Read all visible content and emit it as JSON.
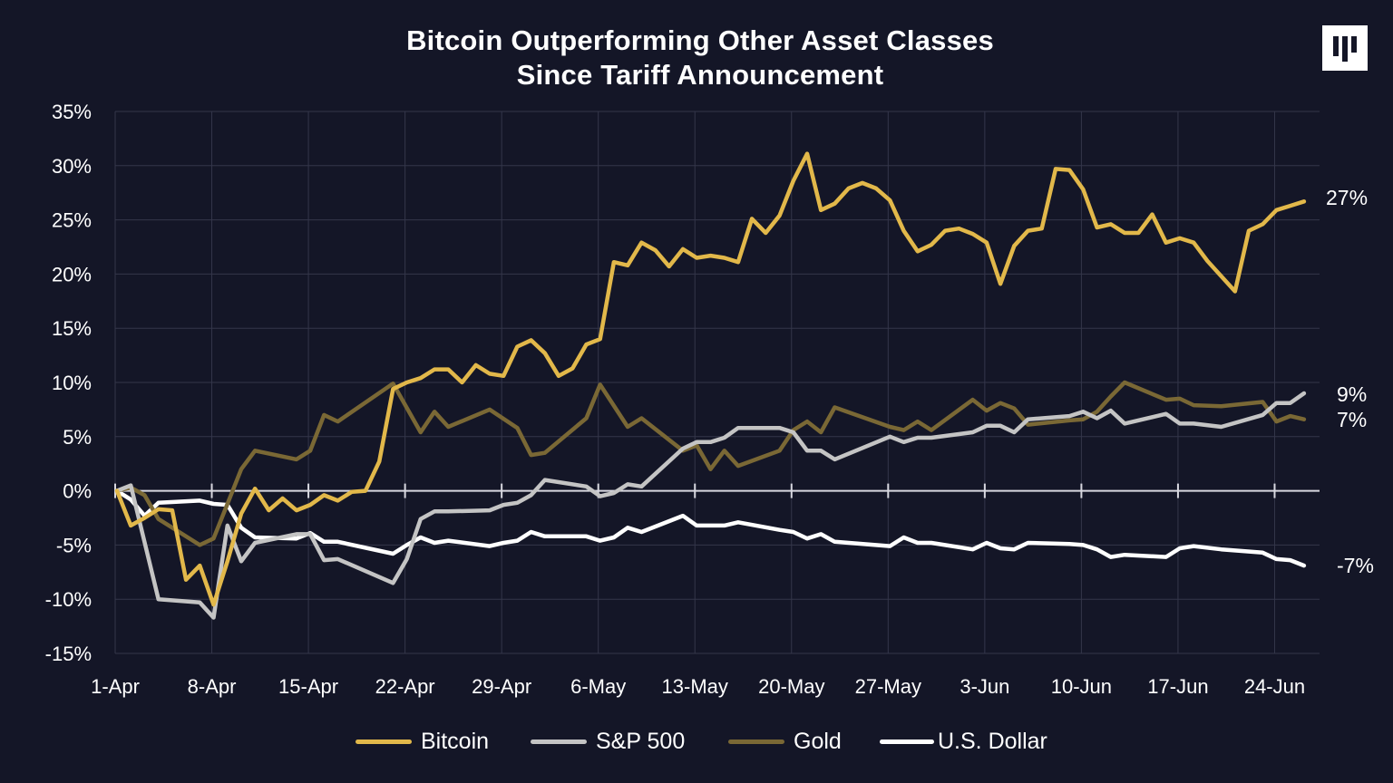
{
  "header": {
    "title_line1": "Bitcoin Outperforming Other Asset Classes",
    "title_line2": "Since Tariff Announcement",
    "logo": "brand-logo"
  },
  "chart_data": {
    "type": "line",
    "title": "Bitcoin Outperforming Other Asset Classes Since Tariff Announcement",
    "xlabel": "",
    "ylabel": "",
    "ylim": [
      -15,
      35
    ],
    "y_ticks": [
      "-15%",
      "-10%",
      "-5%",
      "0%",
      "5%",
      "10%",
      "15%",
      "20%",
      "25%",
      "30%",
      "35%"
    ],
    "x_ticks": [
      "1-Apr",
      "8-Apr",
      "15-Apr",
      "22-Apr",
      "29-Apr",
      "6-May",
      "13-May",
      "20-May",
      "27-May",
      "3-Jun",
      "10-Jun",
      "17-Jun",
      "24-Jun"
    ],
    "grid": true,
    "legend_position": "bottom",
    "series": [
      {
        "name": "Bitcoin",
        "color": "#E2B84A",
        "end_label": "27%",
        "points": [
          [
            "1-Apr",
            0
          ],
          [
            "2-Apr",
            -3.2
          ],
          [
            "3-Apr",
            -2.5
          ],
          [
            "4-Apr",
            -1.7
          ],
          [
            "5-Apr",
            -1.8
          ],
          [
            "6-Apr",
            -8.2
          ],
          [
            "7-Apr",
            -6.9
          ],
          [
            "8-Apr",
            -10.5
          ],
          [
            "9-Apr",
            -6.5
          ],
          [
            "10-Apr",
            -2.1
          ],
          [
            "11-Apr",
            0.2
          ],
          [
            "12-Apr",
            -1.8
          ],
          [
            "13-Apr",
            -0.7
          ],
          [
            "14-Apr",
            -1.8
          ],
          [
            "15-Apr",
            -1.3
          ],
          [
            "16-Apr",
            -0.4
          ],
          [
            "17-Apr",
            -0.9
          ],
          [
            "18-Apr",
            -0.1
          ],
          [
            "19-Apr",
            0
          ],
          [
            "20-Apr",
            2.7
          ],
          [
            "21-Apr",
            9.4
          ],
          [
            "22-Apr",
            10
          ],
          [
            "23-Apr",
            10.4
          ],
          [
            "24-Apr",
            11.2
          ],
          [
            "25-Apr",
            11.2
          ],
          [
            "26-Apr",
            10
          ],
          [
            "27-Apr",
            11.6
          ],
          [
            "28-Apr",
            10.8
          ],
          [
            "29-Apr",
            10.6
          ],
          [
            "30-Apr",
            13.3
          ],
          [
            "1-May",
            13.9
          ],
          [
            "2-May",
            12.7
          ],
          [
            "3-May",
            10.6
          ],
          [
            "4-May",
            11.3
          ],
          [
            "5-May",
            13.5
          ],
          [
            "6-May",
            14
          ],
          [
            "7-May",
            21.1
          ],
          [
            "8-May",
            20.8
          ],
          [
            "9-May",
            22.9
          ],
          [
            "10-May",
            22.2
          ],
          [
            "11-May",
            20.7
          ],
          [
            "12-May",
            22.3
          ],
          [
            "13-May",
            21.5
          ],
          [
            "14-May",
            21.7
          ],
          [
            "15-May",
            21.5
          ],
          [
            "16-May",
            21.1
          ],
          [
            "17-May",
            25.1
          ],
          [
            "18-May",
            23.8
          ],
          [
            "19-May",
            25.4
          ],
          [
            "20-May",
            28.6
          ],
          [
            "21-May",
            31.1
          ],
          [
            "22-May",
            25.9
          ],
          [
            "23-May",
            26.5
          ],
          [
            "24-May",
            27.9
          ],
          [
            "25-May",
            28.4
          ],
          [
            "26-May",
            27.9
          ],
          [
            "27-May",
            26.8
          ],
          [
            "28-May",
            24
          ],
          [
            "29-May",
            22.1
          ],
          [
            "30-May",
            22.7
          ],
          [
            "31-May",
            24
          ],
          [
            "1-Jun",
            24.2
          ],
          [
            "2-Jun",
            23.7
          ],
          [
            "3-Jun",
            22.9
          ],
          [
            "4-Jun",
            19.1
          ],
          [
            "5-Jun",
            22.6
          ],
          [
            "6-Jun",
            24
          ],
          [
            "7-Jun",
            24.2
          ],
          [
            "8-Jun",
            29.7
          ],
          [
            "9-Jun",
            29.6
          ],
          [
            "10-Jun",
            27.8
          ],
          [
            "11-Jun",
            24.3
          ],
          [
            "12-Jun",
            24.6
          ],
          [
            "13-Jun",
            23.8
          ],
          [
            "14-Jun",
            23.8
          ],
          [
            "15-Jun",
            25.5
          ],
          [
            "16-Jun",
            22.9
          ],
          [
            "17-Jun",
            23.3
          ],
          [
            "18-Jun",
            22.9
          ],
          [
            "19-Jun",
            21.2
          ],
          [
            "20-Jun",
            19.8
          ],
          [
            "21-Jun",
            18.4
          ],
          [
            "22-Jun",
            24
          ],
          [
            "23-Jun",
            24.6
          ],
          [
            "24-Jun",
            25.9
          ],
          [
            "25-Jun",
            26.3
          ],
          [
            "26-Jun",
            26.7
          ]
        ]
      },
      {
        "name": "S&P 500",
        "color": "#C4C4C4",
        "end_label": "9%",
        "points": [
          [
            "1-Apr",
            0
          ],
          [
            "2-Apr",
            0.5
          ],
          [
            "4-Apr",
            -10
          ],
          [
            "7-Apr",
            -10.3
          ],
          [
            "8-Apr",
            -11.7
          ],
          [
            "9-Apr",
            -3.2
          ],
          [
            "10-Apr",
            -6.5
          ],
          [
            "11-Apr",
            -4.8
          ],
          [
            "14-Apr",
            -4
          ],
          [
            "15-Apr",
            -4
          ],
          [
            "16-Apr",
            -6.4
          ],
          [
            "17-Apr",
            -6.3
          ],
          [
            "21-Apr",
            -8.5
          ],
          [
            "22-Apr",
            -6.3
          ],
          [
            "23-Apr",
            -2.6
          ],
          [
            "24-Apr",
            -1.9
          ],
          [
            "25-Apr",
            -1.9
          ],
          [
            "28-Apr",
            -1.8
          ],
          [
            "29-Apr",
            -1.3
          ],
          [
            "30-Apr",
            -1.1
          ],
          [
            "1-May",
            -0.4
          ],
          [
            "2-May",
            1
          ],
          [
            "5-May",
            0.4
          ],
          [
            "6-May",
            -0.5
          ],
          [
            "7-May",
            -0.2
          ],
          [
            "8-May",
            0.6
          ],
          [
            "9-May",
            0.4
          ],
          [
            "12-May",
            3.9
          ],
          [
            "13-May",
            4.5
          ],
          [
            "14-May",
            4.5
          ],
          [
            "15-May",
            4.9
          ],
          [
            "16-May",
            5.8
          ],
          [
            "19-May",
            5.8
          ],
          [
            "20-May",
            5.4
          ],
          [
            "21-May",
            3.7
          ],
          [
            "22-May",
            3.7
          ],
          [
            "23-May",
            2.9
          ],
          [
            "27-May",
            5
          ],
          [
            "28-May",
            4.5
          ],
          [
            "29-May",
            4.9
          ],
          [
            "30-May",
            4.9
          ],
          [
            "2-Jun",
            5.4
          ],
          [
            "3-Jun",
            6
          ],
          [
            "4-Jun",
            6
          ],
          [
            "5-Jun",
            5.4
          ],
          [
            "6-Jun",
            6.6
          ],
          [
            "9-Jun",
            6.9
          ],
          [
            "10-Jun",
            7.3
          ],
          [
            "11-Jun",
            6.7
          ],
          [
            "12-Jun",
            7.4
          ],
          [
            "13-Jun",
            6.2
          ],
          [
            "16-Jun",
            7.1
          ],
          [
            "17-Jun",
            6.2
          ],
          [
            "18-Jun",
            6.2
          ],
          [
            "20-Jun",
            5.9
          ],
          [
            "23-Jun",
            7
          ],
          [
            "24-Jun",
            8.1
          ],
          [
            "25-Jun",
            8.1
          ],
          [
            "26-Jun",
            9
          ]
        ]
      },
      {
        "name": "Gold",
        "color": "#7A6835",
        "end_label": "7%",
        "points": [
          [
            "1-Apr",
            0
          ],
          [
            "2-Apr",
            0.3
          ],
          [
            "3-Apr",
            -0.4
          ],
          [
            "4-Apr",
            -2.6
          ],
          [
            "7-Apr",
            -5
          ],
          [
            "8-Apr",
            -4.4
          ],
          [
            "9-Apr",
            -1.2
          ],
          [
            "10-Apr",
            2
          ],
          [
            "11-Apr",
            3.7
          ],
          [
            "14-Apr",
            2.9
          ],
          [
            "15-Apr",
            3.7
          ],
          [
            "16-Apr",
            7
          ],
          [
            "17-Apr",
            6.4
          ],
          [
            "21-Apr",
            9.9
          ],
          [
            "23-Apr",
            5.4
          ],
          [
            "24-Apr",
            7.3
          ],
          [
            "25-Apr",
            5.9
          ],
          [
            "28-Apr",
            7.5
          ],
          [
            "30-Apr",
            5.8
          ],
          [
            "1-May",
            3.3
          ],
          [
            "2-May",
            3.5
          ],
          [
            "5-May",
            6.7
          ],
          [
            "6-May",
            9.8
          ],
          [
            "8-May",
            5.9
          ],
          [
            "9-May",
            6.7
          ],
          [
            "12-May",
            3.7
          ],
          [
            "13-May",
            4.2
          ],
          [
            "14-May",
            2
          ],
          [
            "15-May",
            3.7
          ],
          [
            "16-May",
            2.3
          ],
          [
            "19-May",
            3.7
          ],
          [
            "20-May",
            5.6
          ],
          [
            "21-May",
            6.4
          ],
          [
            "22-May",
            5.4
          ],
          [
            "23-May",
            7.7
          ],
          [
            "27-May",
            5.9
          ],
          [
            "28-May",
            5.6
          ],
          [
            "29-May",
            6.4
          ],
          [
            "30-May",
            5.6
          ],
          [
            "2-Jun",
            8.4
          ],
          [
            "3-Jun",
            7.4
          ],
          [
            "4-Jun",
            8.1
          ],
          [
            "5-Jun",
            7.6
          ],
          [
            "6-Jun",
            6.1
          ],
          [
            "9-Jun",
            6.5
          ],
          [
            "10-Jun",
            6.6
          ],
          [
            "11-Jun",
            7.3
          ],
          [
            "12-Jun",
            8.7
          ],
          [
            "13-Jun",
            10
          ],
          [
            "16-Jun",
            8.4
          ],
          [
            "17-Jun",
            8.5
          ],
          [
            "18-Jun",
            7.9
          ],
          [
            "20-Jun",
            7.8
          ],
          [
            "23-Jun",
            8.2
          ],
          [
            "24-Jun",
            6.4
          ],
          [
            "25-Jun",
            6.9
          ],
          [
            "26-Jun",
            6.6
          ]
        ]
      },
      {
        "name": "U.S. Dollar",
        "color": "#FFFFFF",
        "end_label": "-7%",
        "points": [
          [
            "1-Apr",
            0
          ],
          [
            "2-Apr",
            -0.8
          ],
          [
            "3-Apr",
            -2.3
          ],
          [
            "4-Apr",
            -1.1
          ],
          [
            "7-Apr",
            -0.9
          ],
          [
            "8-Apr",
            -1.2
          ],
          [
            "9-Apr",
            -1.3
          ],
          [
            "10-Apr",
            -3.4
          ],
          [
            "11-Apr",
            -4.3
          ],
          [
            "14-Apr",
            -4.4
          ],
          [
            "15-Apr",
            -3.9
          ],
          [
            "16-Apr",
            -4.7
          ],
          [
            "17-Apr",
            -4.7
          ],
          [
            "21-Apr",
            -5.8
          ],
          [
            "22-Apr",
            -5
          ],
          [
            "23-Apr",
            -4.3
          ],
          [
            "24-Apr",
            -4.8
          ],
          [
            "25-Apr",
            -4.6
          ],
          [
            "28-Apr",
            -5.1
          ],
          [
            "29-Apr",
            -4.8
          ],
          [
            "30-Apr",
            -4.6
          ],
          [
            "1-May",
            -3.8
          ],
          [
            "2-May",
            -4.2
          ],
          [
            "5-May",
            -4.2
          ],
          [
            "6-May",
            -4.6
          ],
          [
            "7-May",
            -4.3
          ],
          [
            "8-May",
            -3.4
          ],
          [
            "9-May",
            -3.8
          ],
          [
            "12-May",
            -2.3
          ],
          [
            "13-May",
            -3.2
          ],
          [
            "14-May",
            -3.2
          ],
          [
            "15-May",
            -3.2
          ],
          [
            "16-May",
            -2.9
          ],
          [
            "19-May",
            -3.6
          ],
          [
            "20-May",
            -3.8
          ],
          [
            "21-May",
            -4.4
          ],
          [
            "22-May",
            -4
          ],
          [
            "23-May",
            -4.7
          ],
          [
            "27-May",
            -5.1
          ],
          [
            "28-May",
            -4.3
          ],
          [
            "29-May",
            -4.8
          ],
          [
            "30-May",
            -4.8
          ],
          [
            "2-Jun",
            -5.4
          ],
          [
            "3-Jun",
            -4.8
          ],
          [
            "4-Jun",
            -5.3
          ],
          [
            "5-Jun",
            -5.4
          ],
          [
            "6-Jun",
            -4.8
          ],
          [
            "9-Jun",
            -4.9
          ],
          [
            "10-Jun",
            -5
          ],
          [
            "11-Jun",
            -5.4
          ],
          [
            "12-Jun",
            -6.1
          ],
          [
            "13-Jun",
            -5.9
          ],
          [
            "16-Jun",
            -6.1
          ],
          [
            "17-Jun",
            -5.3
          ],
          [
            "18-Jun",
            -5.1
          ],
          [
            "20-Jun",
            -5.4
          ],
          [
            "23-Jun",
            -5.7
          ],
          [
            "24-Jun",
            -6.3
          ],
          [
            "25-Jun",
            -6.4
          ],
          [
            "26-Jun",
            -6.9
          ]
        ]
      }
    ]
  },
  "colors": {
    "background": "#141627",
    "grid": "#34364A",
    "zero_line": "#D8D8E0"
  }
}
